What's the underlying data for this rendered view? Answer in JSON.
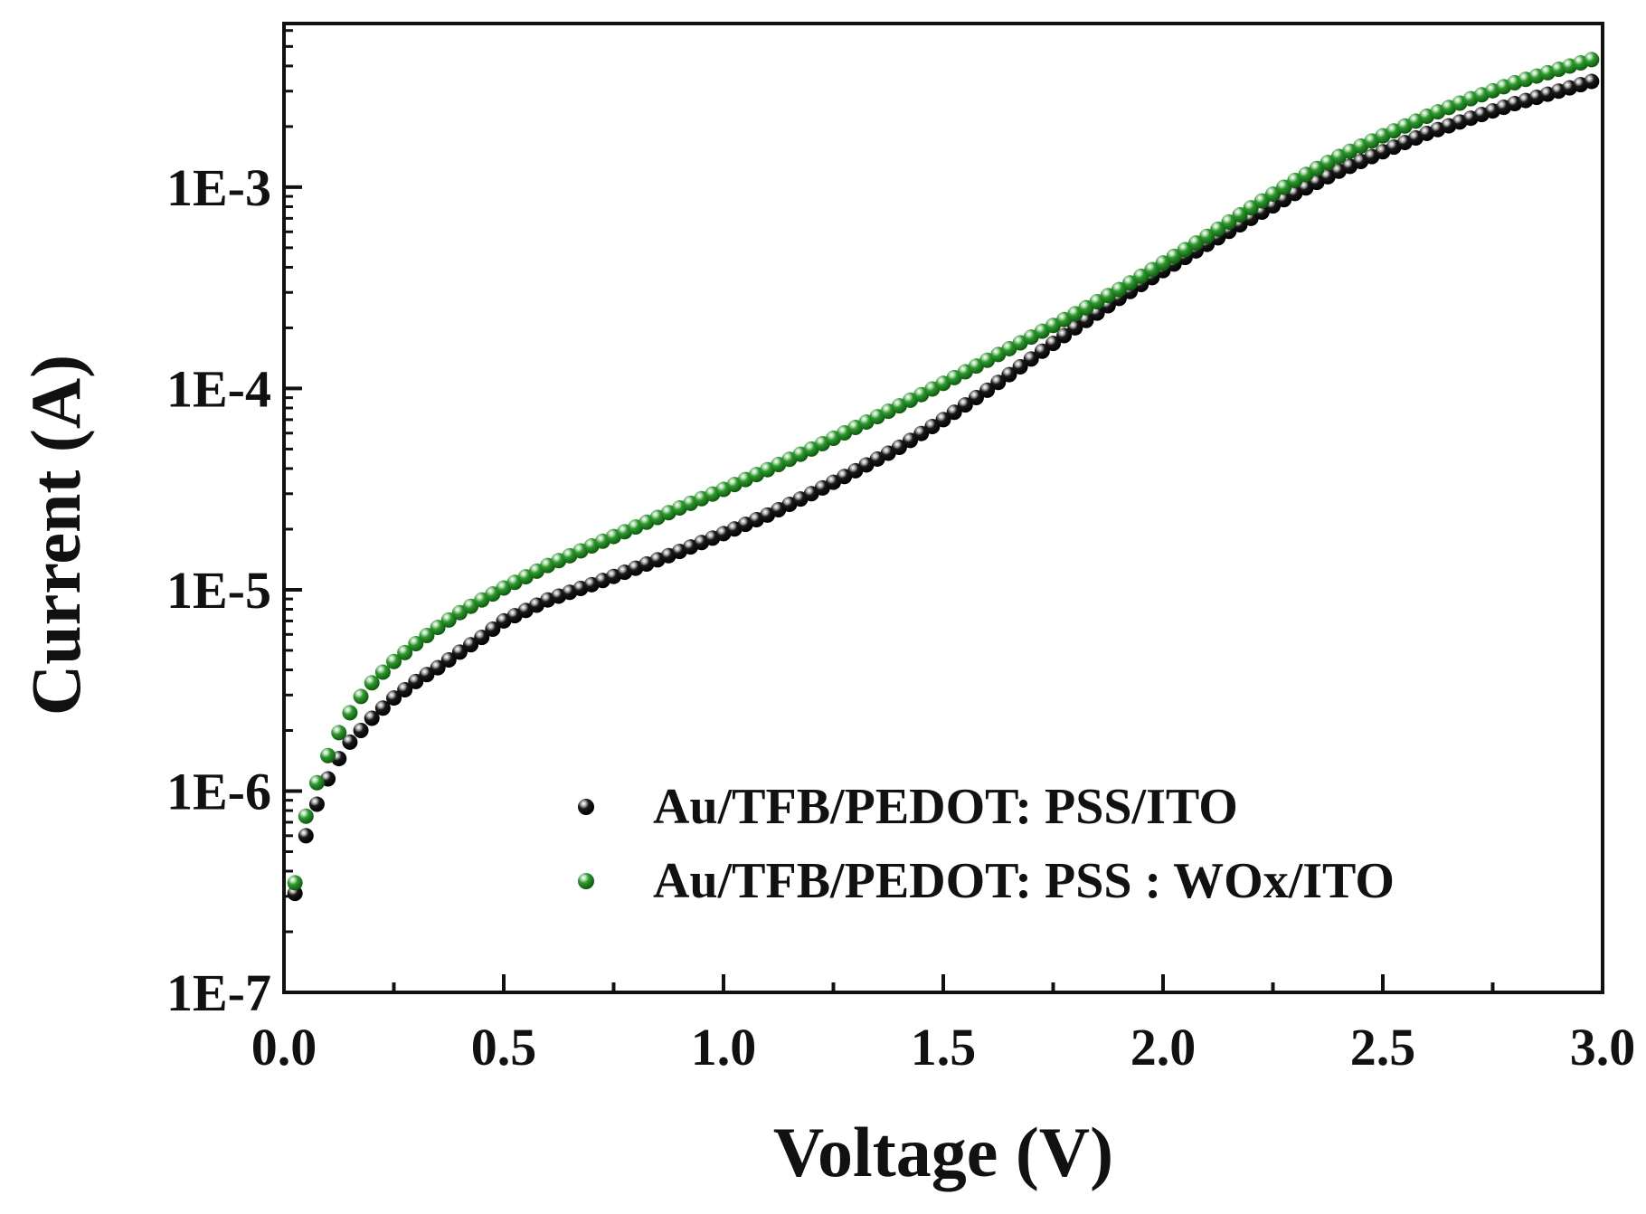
{
  "chart_data": {
    "type": "scatter",
    "title": "",
    "xlabel": "Voltage (V)",
    "ylabel": "Current (A)",
    "xscale": "linear",
    "yscale": "log",
    "xlim": [
      0.0,
      3.0
    ],
    "ylim": [
      1e-07,
      0.0065
    ],
    "grid": false,
    "legend_position": "bottom-right",
    "x_ticks": [
      "0.0",
      "0.5",
      "1.0",
      "1.5",
      "2.0",
      "2.5",
      "3.0"
    ],
    "y_ticks": [
      "1E-7",
      "1E-6",
      "1E-5",
      "1E-4",
      "1E-3"
    ],
    "x_tick_values": [
      0.0,
      0.5,
      1.0,
      1.5,
      2.0,
      2.5,
      3.0
    ],
    "y_tick_values": [
      1e-07,
      1e-06,
      1e-05,
      0.0001,
      0.001
    ],
    "x": [
      0.025,
      0.05,
      0.075,
      0.1,
      0.125,
      0.15,
      0.175,
      0.2,
      0.25,
      0.3,
      0.35,
      0.4,
      0.45,
      0.5,
      0.6,
      0.7,
      0.8,
      0.9,
      1.0,
      1.1,
      1.2,
      1.3,
      1.4,
      1.5,
      1.6,
      1.7,
      1.8,
      1.9,
      2.0,
      2.1,
      2.2,
      2.3,
      2.4,
      2.5,
      2.6,
      2.7,
      2.8,
      2.9,
      2.975
    ],
    "series": [
      {
        "name": "Au/TFB/PEDOT: PSS/ITO",
        "color": "#1a1a1a",
        "values": [
          3.1e-07,
          6e-07,
          8.6e-07,
          1.15e-06,
          1.45e-06,
          1.75e-06,
          2e-06,
          2.3e-06,
          2.9e-06,
          3.5e-06,
          4.1e-06,
          4.9e-06,
          5.8e-06,
          7e-06,
          8.9e-06,
          1.06e-05,
          1.28e-05,
          1.55e-05,
          1.9e-05,
          2.35e-05,
          3e-05,
          3.9e-05,
          5.1e-05,
          7e-05,
          9.8e-05,
          0.00014,
          0.0002,
          0.00028,
          0.000385,
          0.00052,
          0.0007,
          0.00093,
          0.0012,
          0.0015,
          0.00185,
          0.0022,
          0.0026,
          0.003,
          0.00335
        ]
      },
      {
        "name": "Au/TFB/PEDOT: PSS : WOx/ITO",
        "color": "#2e9a2e",
        "values": [
          3.5e-07,
          7.5e-07,
          1.1e-06,
          1.5e-06,
          1.95e-06,
          2.45e-06,
          2.95e-06,
          3.45e-06,
          4.4e-06,
          5.4e-06,
          6.5e-06,
          7.7e-06,
          8.9e-06,
          1.02e-05,
          1.32e-05,
          1.65e-05,
          2.05e-05,
          2.55e-05,
          3.15e-05,
          3.95e-05,
          5e-05,
          6.4e-05,
          8.2e-05,
          0.000106,
          0.000138,
          0.00018,
          0.000235,
          0.00031,
          0.00042,
          0.00057,
          0.00079,
          0.00108,
          0.00142,
          0.0018,
          0.00225,
          0.00275,
          0.0033,
          0.00385,
          0.0043
        ]
      }
    ]
  }
}
